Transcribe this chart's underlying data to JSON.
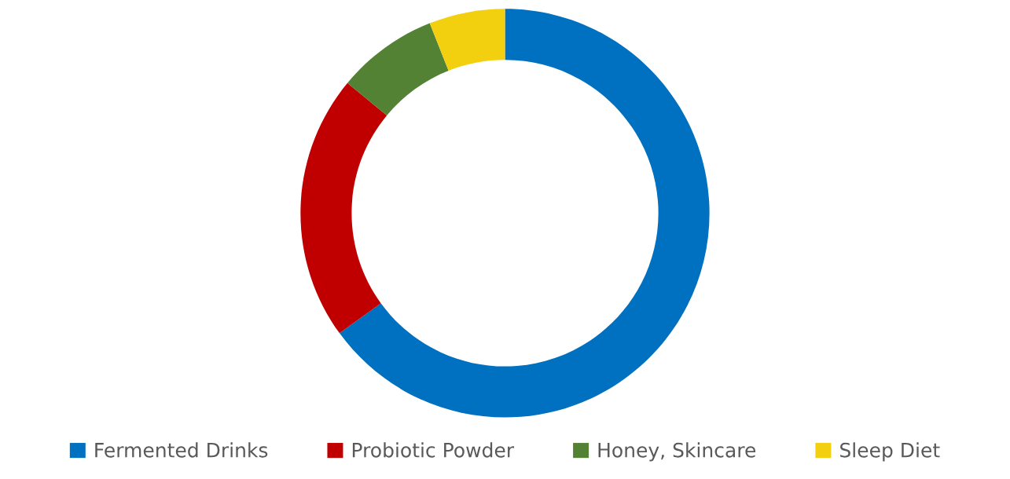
{
  "chart_data": {
    "type": "donut",
    "categories": [
      "Fermented Drinks",
      "Probiotic Powder",
      "Honey, Skincare",
      "Sleep Diet"
    ],
    "values": [
      65,
      21,
      8,
      6
    ],
    "colors": [
      "#0070c0",
      "#c00000",
      "#548235",
      "#f2d00f"
    ],
    "legend": "bottom"
  }
}
